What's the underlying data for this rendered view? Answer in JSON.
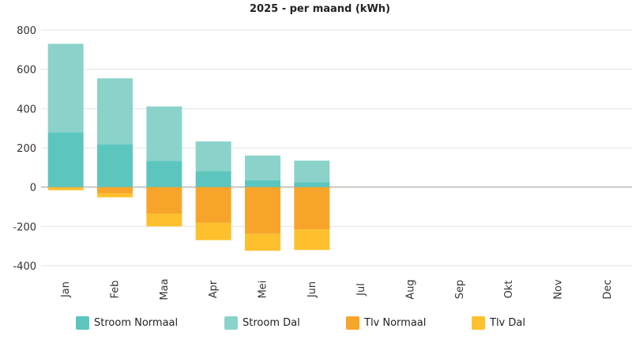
{
  "chart_data": {
    "type": "bar",
    "stacked": true,
    "title": "2025 - per maand (kWh)",
    "xlabel": "",
    "ylabel": "",
    "ylim": [
      -400,
      800
    ],
    "yticks": [
      800,
      600,
      400,
      200,
      0,
      -200,
      -400
    ],
    "ytick_labels": [
      "800",
      "600",
      "400",
      "200",
      "0",
      "-200",
      "-400"
    ],
    "grid": true,
    "legend_position": "bottom",
    "categories": [
      "Jan",
      "Feb",
      "Maa",
      "Apr",
      "Mei",
      "Jun",
      "Jul",
      "Aug",
      "Sep",
      "Okt",
      "Nov",
      "Dec"
    ],
    "series": [
      {
        "name": "Stroom Normaal",
        "color": "#5cc6be",
        "values": [
          280,
          218,
          134,
          82,
          36,
          25,
          null,
          null,
          null,
          null,
          null,
          null
        ]
      },
      {
        "name": "Stroom Dal",
        "color": "#8bd3ca",
        "values": [
          450,
          336,
          277,
          151,
          125,
          110,
          null,
          null,
          null,
          null,
          null,
          null
        ]
      },
      {
        "name": "Tlv Normaal",
        "color": "#f7a52a",
        "values": [
          -4,
          -32,
          -136,
          -182,
          -238,
          -216,
          null,
          null,
          null,
          null,
          null,
          null
        ]
      },
      {
        "name": "Tlv Dal",
        "color": "#fec12d",
        "values": [
          -12,
          -20,
          -64,
          -88,
          -86,
          -104,
          null,
          null,
          null,
          null,
          null,
          null
        ]
      }
    ]
  }
}
